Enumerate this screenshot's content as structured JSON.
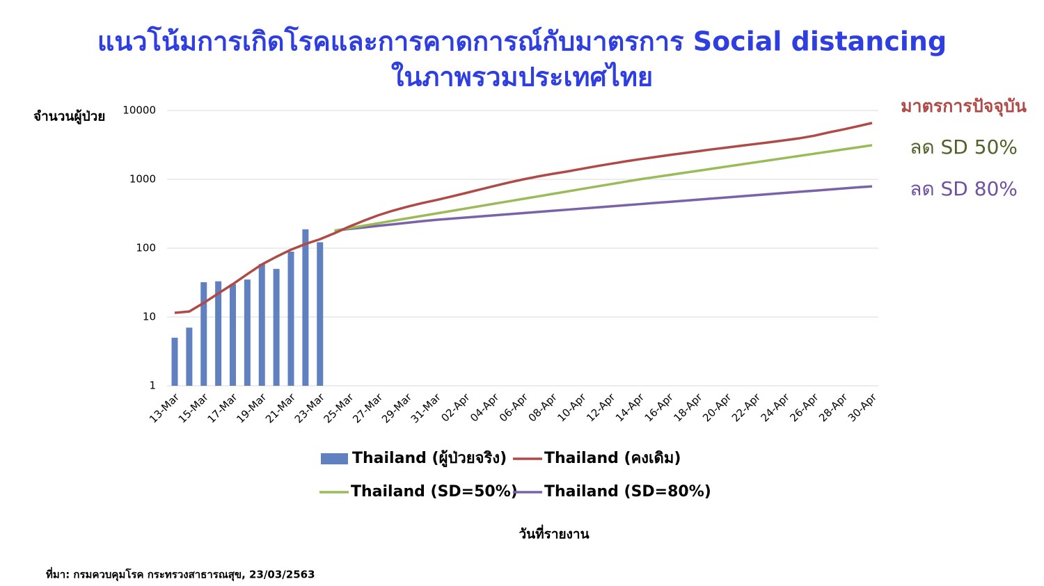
{
  "chart_data": {
    "type": "combo",
    "title": "แนวโน้มการเกิดโรคและการคาดการณ์กับมาตรการ Social distancing",
    "subtitle": "ในภาพรวมประเทศไทย",
    "y_label": "จำนวนผู้ป่วย",
    "x_label": "วันที่รายงาน",
    "source": "ที่มา: กรมควบคุมโรค กระทรวงสาธารณสุข, 23/03/2563",
    "annotations": [
      {
        "text": "มาตรการปัจจุบัน",
        "color": "#b04a47"
      },
      {
        "text": "ลด SD 50%",
        "color": "#4f6228"
      },
      {
        "text": "ลด SD 80%",
        "color": "#7050a0"
      }
    ],
    "y_scale": "log",
    "ylim": [
      1,
      10000
    ],
    "yticks": [
      1,
      10,
      100,
      1000,
      10000
    ],
    "grid": true,
    "legend_position": "bottom",
    "categories": [
      "13-Mar",
      null,
      "15-Mar",
      null,
      "17-Mar",
      null,
      "19-Mar",
      null,
      "21-Mar",
      null,
      "23-Mar",
      null,
      "25-Mar",
      null,
      "27-Mar",
      null,
      "29-Mar",
      null,
      "31-Mar",
      null,
      "02-Apr",
      null,
      "04-Apr",
      null,
      "06-Apr",
      null,
      "08-Apr",
      null,
      "10-Apr",
      null,
      "12-Apr",
      null,
      "14-Apr",
      null,
      "16-Apr",
      null,
      "18-Apr",
      null,
      "20-Apr",
      null,
      "22-Apr",
      null,
      "24-Apr",
      null,
      "26-Apr",
      null,
      "28-Apr",
      null,
      "30-Apr"
    ],
    "series": [
      {
        "name": "Thailand (ผู้ป่วยจริง)",
        "type": "bar",
        "color": "#6080c0",
        "values": [
          5,
          7,
          32,
          33,
          30,
          35,
          59,
          50,
          89,
          188,
          122,
          null,
          null,
          null,
          null,
          null,
          null,
          null,
          null,
          null,
          null,
          null,
          null,
          null,
          null,
          null,
          null,
          null,
          null,
          null,
          null,
          null,
          null,
          null,
          null,
          null,
          null,
          null,
          null,
          null,
          null,
          null,
          null,
          null,
          null,
          null,
          null,
          null,
          null
        ]
      },
      {
        "name": "Thailand (คงเดิม)",
        "type": "line",
        "color": "#b04a47",
        "values": [
          11.5,
          12,
          16,
          22,
          30,
          42,
          58,
          75,
          95,
          115,
          135,
          165,
          205,
          250,
          300,
          350,
          400,
          450,
          500,
          560,
          630,
          710,
          800,
          900,
          1000,
          1100,
          1200,
          1300,
          1420,
          1550,
          1680,
          1820,
          1960,
          2100,
          2250,
          2400,
          2560,
          2730,
          2900,
          3080,
          3270,
          3470,
          3700,
          3950,
          4300,
          4800,
          5300,
          5900,
          6600
        ]
      },
      {
        "name": "Thailand (SD=50%)",
        "type": "line",
        "color": "#9bbb59",
        "values": [
          null,
          null,
          null,
          null,
          null,
          null,
          null,
          null,
          null,
          null,
          null,
          180,
          195,
          212,
          230,
          250,
          271,
          294,
          319,
          346,
          376,
          408,
          443,
          480,
          521,
          565,
          614,
          666,
          723,
          784,
          851,
          923,
          1000,
          1074,
          1153,
          1239,
          1330,
          1429,
          1535,
          1648,
          1770,
          1901,
          2042,
          2193,
          2355,
          2529,
          2716,
          2917,
          3133
        ]
      },
      {
        "name": "Thailand (SD=80%)",
        "type": "line",
        "color": "#7a62a8",
        "values": [
          null,
          null,
          null,
          null,
          null,
          null,
          null,
          null,
          null,
          null,
          null,
          180,
          190,
          200,
          211,
          222,
          234,
          246,
          258,
          268,
          278,
          289,
          300,
          312,
          324,
          336,
          349,
          362,
          376,
          390,
          405,
          420,
          436,
          453,
          470,
          488,
          507,
          526,
          546,
          567,
          589,
          611,
          635,
          659,
          684,
          710,
          737,
          765,
          790
        ]
      }
    ]
  }
}
